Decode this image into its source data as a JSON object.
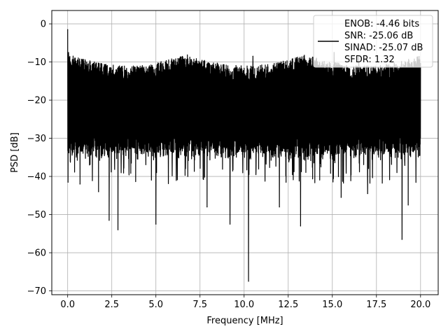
{
  "chart_data": {
    "type": "line",
    "title": "",
    "xlabel": "Frequency [MHz]",
    "ylabel": "PSD [dB]",
    "xlim": [
      -0.9,
      21.0
    ],
    "ylim": [
      -71,
      3.5
    ],
    "grid": true,
    "xticks": [
      0.0,
      2.5,
      5.0,
      7.5,
      10.0,
      12.5,
      15.0,
      17.5,
      20.0
    ],
    "xtick_labels": [
      "0.0",
      "2.5",
      "5.0",
      "7.5",
      "10.0",
      "12.5",
      "15.0",
      "17.5",
      "20.0"
    ],
    "yticks": [
      0,
      -10,
      -20,
      -30,
      -40,
      -50,
      -60,
      -70
    ],
    "ytick_labels": [
      "0",
      "−10",
      "−20",
      "−30",
      "−40",
      "−50",
      "−60",
      "−70"
    ],
    "legend": {
      "placement": "top-right",
      "entries": [
        "ENOB: -4.46 bits",
        "SNR: -25.06 dB",
        "SINAD: -25.07 dB",
        "SFDR: 1.32"
      ]
    },
    "series": [
      {
        "color": "#000000",
        "x_range": [
          0,
          20
        ],
        "noise_floor_median_db": -22,
        "upper_envelope_db": [
          -8,
          -13
        ],
        "lower_envelope_db": [
          -32,
          -36
        ],
        "peaks": [
          {
            "x": 0.0,
            "y": -1.5
          },
          {
            "x": 0.05,
            "y": -7.5
          },
          {
            "x": 10.25,
            "y": -67.5
          },
          {
            "x": 9.2,
            "y": -52.5
          },
          {
            "x": 5.0,
            "y": -52.5
          },
          {
            "x": 2.85,
            "y": -54.0
          },
          {
            "x": 2.35,
            "y": -51.5
          },
          {
            "x": 13.2,
            "y": -53.0
          },
          {
            "x": 15.5,
            "y": -45.5
          },
          {
            "x": 18.95,
            "y": -56.5
          },
          {
            "x": 0.02,
            "y": -41.5
          },
          {
            "x": 0.7,
            "y": -42.0
          },
          {
            "x": 1.75,
            "y": -44.0
          },
          {
            "x": 7.9,
            "y": -48.0
          },
          {
            "x": 12.0,
            "y": -48.0
          },
          {
            "x": 17.0,
            "y": -44.5
          },
          {
            "x": 19.3,
            "y": -47.5
          },
          {
            "x": 15.1,
            "y": -7.5
          },
          {
            "x": 16.5,
            "y": -8.5
          },
          {
            "x": 10.5,
            "y": -8.5
          }
        ]
      }
    ]
  }
}
